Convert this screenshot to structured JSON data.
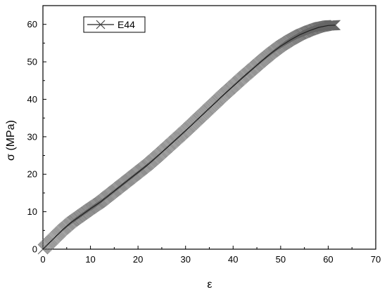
{
  "chart_data": {
    "type": "line",
    "xlabel": "ε",
    "ylabel": "σ (MPa)",
    "xlim": [
      0,
      70
    ],
    "ylim": [
      0,
      65
    ],
    "xticks": [
      0,
      10,
      20,
      30,
      40,
      50,
      60,
      70
    ],
    "yticks": [
      0,
      10,
      20,
      30,
      40,
      50,
      60
    ],
    "grid": false,
    "legend_position": "top-left",
    "marker": "x",
    "colors": {
      "line": "#222222",
      "marker": "#666666"
    },
    "series": [
      {
        "name": "E44",
        "x": [
          0,
          2,
          4,
          6,
          8,
          10,
          12,
          14,
          16,
          18,
          20,
          22,
          24,
          26,
          28,
          30,
          32,
          34,
          36,
          38,
          40,
          42,
          44,
          46,
          48,
          50,
          52,
          54,
          56,
          58,
          60,
          61.5
        ],
        "y": [
          0,
          2.5,
          5.0,
          7.2,
          9.0,
          10.8,
          12.5,
          14.5,
          16.5,
          18.5,
          20.5,
          22.5,
          24.7,
          27.0,
          29.3,
          31.6,
          34.0,
          36.4,
          38.8,
          41.2,
          43.5,
          45.8,
          48.0,
          50.2,
          52.3,
          54.2,
          55.8,
          57.2,
          58.3,
          59.2,
          59.7,
          59.8
        ]
      }
    ]
  }
}
